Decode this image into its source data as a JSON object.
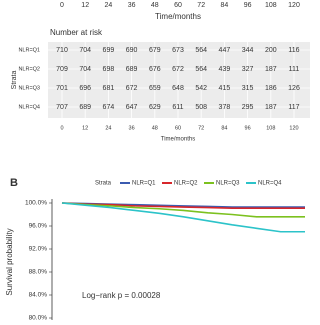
{
  "chart_data": [
    {
      "type": "table",
      "title": "Number at risk",
      "xlabel": "Time/months",
      "ylabel": "Strata",
      "xlim": [
        0,
        120
      ],
      "xticks": [
        0,
        12,
        24,
        36,
        48,
        60,
        72,
        84,
        96,
        108,
        120
      ],
      "series": [
        {
          "name": "NLR=Q1",
          "color": "#3b5bb0",
          "values": [
            710,
            704,
            699,
            690,
            679,
            673,
            564,
            447,
            344,
            200,
            116
          ]
        },
        {
          "name": "NLR=Q2",
          "color": "#d7262b",
          "values": [
            709,
            704,
            698,
            689,
            676,
            672,
            564,
            439,
            327,
            187,
            111
          ]
        },
        {
          "name": "NLR=Q3",
          "color": "#7cc11f",
          "values": [
            701,
            696,
            681,
            672,
            659,
            648,
            542,
            415,
            315,
            186,
            126
          ]
        },
        {
          "name": "NLR=Q4",
          "color": "#2cc3c9",
          "values": [
            707,
            689,
            674,
            647,
            629,
            611,
            508,
            378,
            295,
            187,
            117
          ]
        }
      ]
    },
    {
      "type": "line",
      "panel": "B",
      "legend_title": "Strata",
      "ylabel": "Survival probability",
      "annotation": "Log−rank    p = 0.00028",
      "x": [
        0,
        12,
        24,
        36,
        48,
        60,
        72,
        84,
        96,
        108,
        120
      ],
      "xlim": [
        0,
        120
      ],
      "ylim": [
        80,
        100
      ],
      "yticks": [
        {
          "value": 80,
          "label": "80.0%"
        },
        {
          "value": 84,
          "label": "84.0%"
        },
        {
          "value": 88,
          "label": "88.0%"
        },
        {
          "value": 92,
          "label": "92.0%"
        },
        {
          "value": 96,
          "label": "96.0%"
        },
        {
          "value": 100,
          "label": "100.0%"
        }
      ],
      "series": [
        {
          "name": "NLR=Q1",
          "color": "#3b5bb0",
          "values": [
            100,
            99.9,
            99.8,
            99.7,
            99.6,
            99.5,
            99.4,
            99.3,
            99.3,
            99.3,
            99.3
          ]
        },
        {
          "name": "NLR=Q2",
          "color": "#d7262b",
          "values": [
            100,
            99.8,
            99.7,
            99.5,
            99.4,
            99.3,
            99.2,
            99.1,
            99.1,
            99.1,
            99.1
          ]
        },
        {
          "name": "NLR=Q3",
          "color": "#7cc11f",
          "values": [
            100,
            99.7,
            99.5,
            99.2,
            99.0,
            98.7,
            98.3,
            98.0,
            97.6,
            97.6,
            97.6
          ]
        },
        {
          "name": "NLR=Q4",
          "color": "#2cc3c9",
          "values": [
            100,
            99.6,
            99.2,
            98.7,
            98.2,
            97.6,
            96.9,
            96.2,
            95.6,
            95.0,
            95.0
          ]
        }
      ]
    }
  ]
}
